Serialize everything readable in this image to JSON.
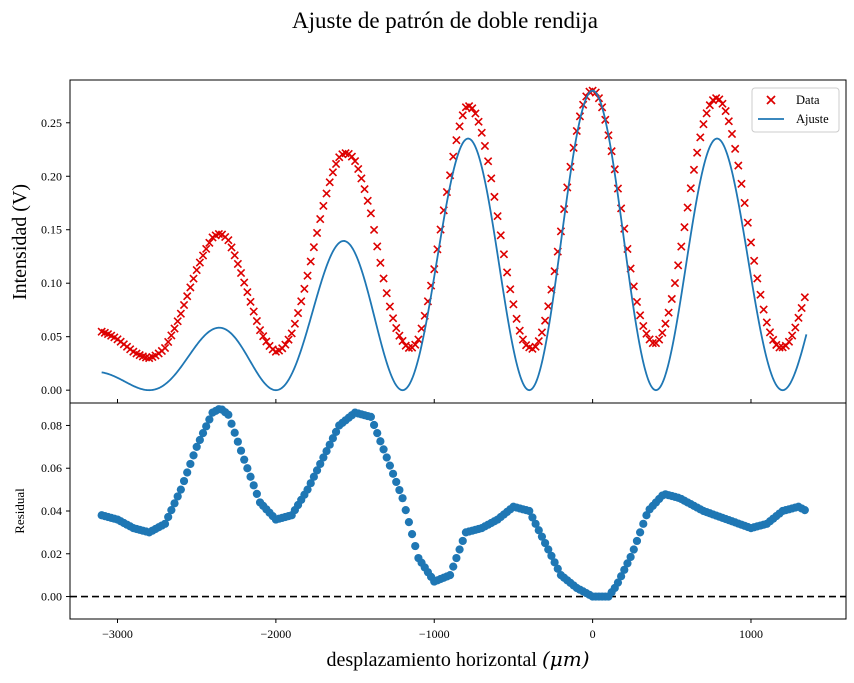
{
  "figure": {
    "title": "Ajuste de patrón de doble rendija",
    "xlabel_text": "desplazamiento horizontal ",
    "xlabel_math": "(μm)",
    "top_ylabel": "Intensidad (V)",
    "bottom_ylabel": "Residual",
    "legend": {
      "data_label": "Data",
      "fit_label": "Ajuste",
      "placement": "top-right"
    },
    "colors": {
      "data": "#dd0000",
      "fit": "#1f77b4",
      "residual": "#1f77b4",
      "zero_line": "#000000"
    }
  },
  "chart_data": [
    {
      "type": "scatter+line",
      "xlim": [
        -3300,
        1600
      ],
      "ylim": [
        -0.012,
        0.29
      ],
      "yticks": [
        0.0,
        0.05,
        0.1,
        0.15,
        0.2,
        0.25
      ],
      "ytick_labels": [
        "0.00",
        "0.05",
        "0.10",
        "0.15",
        "0.20",
        "0.25"
      ],
      "series": [
        {
          "name": "Data",
          "marker": "x",
          "model": {
            "x_start": -3100,
            "x_end": 1350,
            "step": 20,
            "background": [
              [
                -3100,
                0.038
              ],
              [
                -3000,
                0.036
              ],
              [
                -2900,
                0.032
              ],
              [
                -2800,
                0.03
              ],
              [
                -2700,
                0.034
              ],
              [
                -2600,
                0.05
              ],
              [
                -2500,
                0.07
              ],
              [
                -2400,
                0.086
              ],
              [
                -2350,
                0.088
              ],
              [
                -2300,
                0.085
              ],
              [
                -2200,
                0.064
              ],
              [
                -2100,
                0.044
              ],
              [
                -2000,
                0.036
              ],
              [
                -1900,
                0.038
              ],
              [
                -1800,
                0.05
              ],
              [
                -1600,
                0.08
              ],
              [
                -1500,
                0.086
              ],
              [
                -1400,
                0.084
              ],
              [
                -1200,
                0.046
              ],
              [
                -1100,
                0.018
              ],
              [
                -1000,
                0.007
              ],
              [
                -900,
                0.01
              ],
              [
                -800,
                0.03
              ],
              [
                -700,
                0.032
              ],
              [
                -600,
                0.036
              ],
              [
                -500,
                0.042
              ],
              [
                -400,
                0.04
              ],
              [
                -300,
                0.025
              ],
              [
                -200,
                0.01
              ],
              [
                -100,
                0.004
              ],
              [
                0,
                0.0
              ],
              [
                100,
                0.0
              ],
              [
                150,
                0.005
              ],
              [
                250,
                0.02
              ],
              [
                350,
                0.04
              ],
              [
                450,
                0.048
              ],
              [
                550,
                0.046
              ],
              [
                700,
                0.04
              ],
              [
                850,
                0.036
              ],
              [
                1000,
                0.032
              ],
              [
                1100,
                0.034
              ],
              [
                1200,
                0.04
              ],
              [
                1300,
                0.042
              ],
              [
                1350,
                0.04
              ]
            ]
          }
        },
        {
          "name": "Ajuste",
          "marker": "line",
          "model": {
            "x_start": -3100,
            "x_end": 1350,
            "step": 5,
            "peak_intensity": 0.28,
            "fringe_period": 800,
            "envelope_width": 3800,
            "center": 0
          }
        }
      ]
    },
    {
      "type": "scatter",
      "xlim": [
        -3300,
        1600
      ],
      "ylim": [
        -0.0105,
        0.0905
      ],
      "yticks": [
        0.0,
        0.02,
        0.04,
        0.06,
        0.08
      ],
      "ytick_labels": [
        "0.00",
        "0.02",
        "0.04",
        "0.06",
        "0.08"
      ],
      "xticks": [
        -3000,
        -2000,
        -1000,
        0,
        1000
      ],
      "xtick_labels": [
        "−3000",
        "−2000",
        "−1000",
        "0",
        "1000"
      ],
      "reference_line": 0.0,
      "series": [
        {
          "name": "Residual",
          "marker": "circle",
          "derived_from": "Data minus Ajuste"
        }
      ]
    }
  ]
}
